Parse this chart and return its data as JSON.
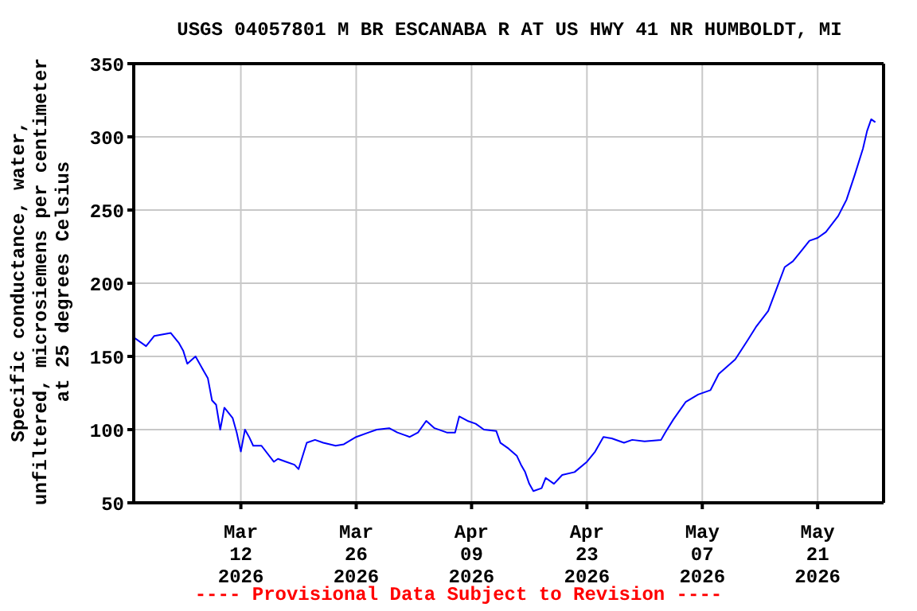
{
  "chart_data": {
    "type": "line",
    "title": "USGS 04057801 M BR ESCANABA R AT US HWY 41 NR HUMBOLDT, MI",
    "ylabel": "Specific conductance, water,\nunfiltered, microsiemens per centimeter\nat 25 degrees Celsius",
    "annotations": [
      "---- Provisional Data Subject to Revision ----"
    ],
    "x": [
      "2026-02-27T00:00",
      "2026-02-28T12:00",
      "2026-03-01T12:00",
      "2026-03-03T12:00",
      "2026-03-04T12:00",
      "2026-03-05T00:00",
      "2026-03-05T12:00",
      "2026-03-06T12:00",
      "2026-03-07T12:00",
      "2026-03-08T00:00",
      "2026-03-08T12:00",
      "2026-03-09T00:00",
      "2026-03-09T12:00",
      "2026-03-10T00:00",
      "2026-03-11T00:00",
      "2026-03-11T12:00",
      "2026-03-12T00:00",
      "2026-03-12T12:00",
      "2026-03-13T00:00",
      "2026-03-13T12:00",
      "2026-03-14T12:00",
      "2026-03-16T00:00",
      "2026-03-16T12:00",
      "2026-03-17T12:00",
      "2026-03-18T12:00",
      "2026-03-19T00:00",
      "2026-03-20T00:00",
      "2026-03-21T00:00",
      "2026-03-22T00:00",
      "2026-03-23T12:00",
      "2026-03-24T12:00",
      "2026-03-26T00:00",
      "2026-03-27T12:00",
      "2026-03-28T12:00",
      "2026-03-30T00:00",
      "2026-03-31T00:00",
      "2026-04-01T12:00",
      "2026-04-02T12:00",
      "2026-04-03T12:00",
      "2026-04-04T12:00",
      "2026-04-06T00:00",
      "2026-04-07T00:00",
      "2026-04-07T12:00",
      "2026-04-08T12:00",
      "2026-04-09T12:00",
      "2026-04-10T12:00",
      "2026-04-12T00:00",
      "2026-04-12T12:00",
      "2026-04-13T12:00",
      "2026-04-14T12:00",
      "2026-04-15T00:00",
      "2026-04-15T12:00",
      "2026-04-16T00:00",
      "2026-04-16T12:00",
      "2026-04-17T12:00",
      "2026-04-18T00:00",
      "2026-04-19T00:00",
      "2026-04-20T00:00",
      "2026-04-21T12:00",
      "2026-04-23T00:00",
      "2026-04-24T00:00",
      "2026-04-25T00:00",
      "2026-04-26T00:00",
      "2026-04-27T12:00",
      "2026-04-28T12:00",
      "2026-04-30T00:00",
      "2026-05-02T00:00",
      "2026-05-02T12:00",
      "2026-05-03T12:00",
      "2026-05-05T00:00",
      "2026-05-06T12:00",
      "2026-05-08T00:00",
      "2026-05-09T00:00",
      "2026-05-11T00:00",
      "2026-05-12T12:00",
      "2026-05-13T12:00",
      "2026-05-15T00:00",
      "2026-05-16T00:00",
      "2026-05-17T00:00",
      "2026-05-18T00:00",
      "2026-05-19T00:00",
      "2026-05-20T00:00",
      "2026-05-21T00:00",
      "2026-05-22T00:00",
      "2026-05-23T12:00",
      "2026-05-24T12:00",
      "2026-05-25T12:00",
      "2026-05-26T12:00",
      "2026-05-27T00:00",
      "2026-05-27T12:00",
      "2026-05-28T00:00"
    ],
    "series": [
      {
        "color": "#0000ff",
        "values": [
          163,
          157,
          164,
          166,
          159,
          154,
          145,
          150,
          140,
          135,
          120,
          117,
          100,
          115,
          108,
          98,
          85,
          100,
          95,
          89,
          89,
          78,
          80,
          78,
          76,
          73,
          91,
          93,
          91,
          89,
          90,
          95,
          98,
          100,
          101,
          98,
          95,
          98,
          106,
          101,
          98,
          98,
          109,
          106,
          104,
          100,
          99,
          91,
          87,
          82,
          76,
          71,
          63,
          58,
          60,
          67,
          63,
          69,
          71,
          78,
          85,
          95,
          94,
          91,
          93,
          92,
          93,
          98,
          107,
          119,
          124,
          127,
          138,
          148,
          161,
          170,
          181,
          196,
          211,
          215,
          222,
          229,
          231,
          235,
          246,
          257,
          274,
          292,
          304,
          312,
          310
        ]
      }
    ],
    "xlim": [
      "2026-02-27",
      "2026-05-29"
    ],
    "xticks": [
      {
        "value": "2026-03-12",
        "label": "Mar\n12\n2026"
      },
      {
        "value": "2026-03-26",
        "label": "Mar\n26\n2026"
      },
      {
        "value": "2026-04-09",
        "label": "Apr\n09\n2026"
      },
      {
        "value": "2026-04-23",
        "label": "Apr\n23\n2026"
      },
      {
        "value": "2026-05-07",
        "label": "May\n07\n2026"
      },
      {
        "value": "2026-05-21",
        "label": "May\n21\n2026"
      }
    ],
    "ylim": [
      50,
      350
    ],
    "yticks": [
      50,
      100,
      150,
      200,
      250,
      300,
      350
    ],
    "grid": true,
    "marker": "none",
    "line_style": "solid"
  }
}
